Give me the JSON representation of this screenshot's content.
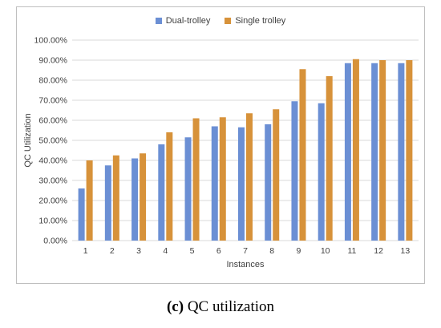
{
  "chart_data": {
    "type": "bar",
    "categories": [
      "1",
      "2",
      "3",
      "4",
      "5",
      "6",
      "7",
      "8",
      "9",
      "10",
      "11",
      "12",
      "13"
    ],
    "series": [
      {
        "name": "Dual-trolley",
        "color": "#6b8fd4",
        "values": [
          26.0,
          37.5,
          41.0,
          48.0,
          51.5,
          57.0,
          56.5,
          58.0,
          69.5,
          68.5,
          88.5,
          88.5,
          88.5
        ]
      },
      {
        "name": "Single trolley",
        "color": "#d7923a",
        "values": [
          40.0,
          42.5,
          43.5,
          54.0,
          61.0,
          61.5,
          63.5,
          65.5,
          85.5,
          82.0,
          90.5,
          90.0,
          90.0
        ]
      }
    ],
    "xlabel": "Instances",
    "ylabel": "QC Utilization",
    "ylim": [
      0,
      100
    ],
    "yticks": [
      "0.00%",
      "10.00%",
      "20.00%",
      "30.00%",
      "40.00%",
      "50.00%",
      "60.00%",
      "70.00%",
      "80.00%",
      "90.00%",
      "100.00%"
    ],
    "grid": true,
    "legend_position": "top"
  },
  "caption": {
    "letter": "(c)",
    "text": "QC utilization"
  }
}
